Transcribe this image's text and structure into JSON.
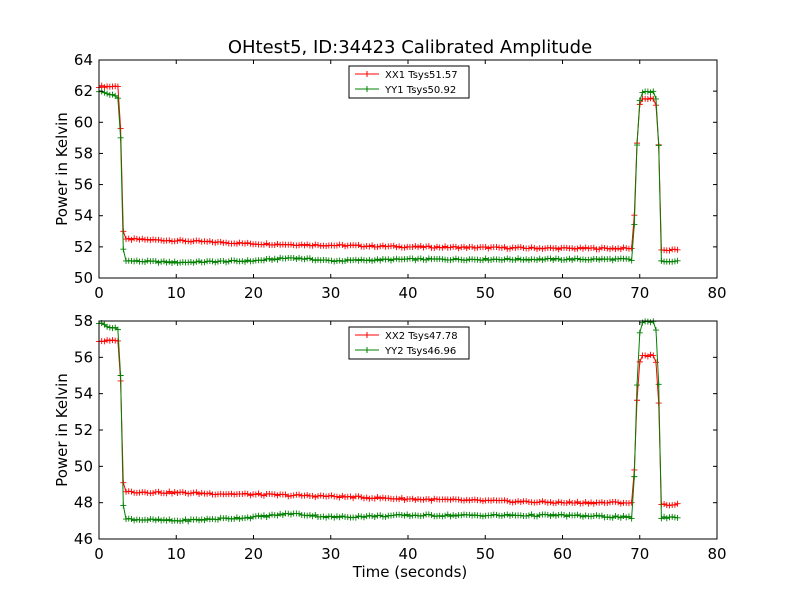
{
  "figure": {
    "title": "OHtest5, ID:34423 Calibrated Amplitude",
    "xlabel": "Time (seconds)"
  },
  "colors": {
    "xx": "#ff0000",
    "yy": "#008000"
  },
  "chart_data": [
    {
      "type": "line",
      "title": "OHtest5, ID:34423 Calibrated Amplitude",
      "xlabel": "",
      "ylabel": "Power in Kelvin",
      "xlim": [
        0,
        80
      ],
      "ylim": [
        50,
        64
      ],
      "xticks": [
        0,
        10,
        20,
        30,
        40,
        50,
        60,
        70,
        80
      ],
      "yticks": [
        50,
        52,
        54,
        56,
        58,
        60,
        62,
        64
      ],
      "grid": false,
      "legend_position": "top-center",
      "marker": "plus",
      "series": [
        {
          "name": "XX1 Tsys51.57",
          "color": "#ff0000",
          "x": [
            0.0,
            2.5,
            2.8,
            3.1,
            3.4,
            10.0,
            20.0,
            30.0,
            40.0,
            50.0,
            60.0,
            68.5,
            69.1,
            69.4,
            69.8,
            70.2,
            72.0,
            72.4,
            72.7,
            73.0,
            75.0
          ],
          "values": [
            62.3,
            62.3,
            59.6,
            53.1,
            52.5,
            52.4,
            52.2,
            52.1,
            52.0,
            51.95,
            51.9,
            51.9,
            51.9,
            55.1,
            60.8,
            61.5,
            61.5,
            59.9,
            51.8,
            51.8,
            51.8
          ]
        },
        {
          "name": "YY1 Tsys50.92",
          "color": "#008000",
          "x": [
            0.0,
            2.0,
            2.6,
            2.8,
            3.1,
            3.4,
            10.0,
            20.0,
            25.0,
            30.0,
            40.0,
            50.0,
            60.0,
            68.5,
            69.1,
            69.4,
            69.8,
            70.2,
            72.0,
            72.4,
            72.7,
            73.0,
            75.0
          ],
          "values": [
            62.0,
            61.7,
            61.5,
            59.0,
            52.0,
            51.1,
            51.0,
            51.1,
            51.3,
            51.1,
            51.2,
            51.2,
            51.2,
            51.2,
            51.1,
            54.6,
            60.9,
            61.9,
            62.0,
            60.0,
            51.1,
            51.1,
            51.1
          ]
        }
      ]
    },
    {
      "type": "line",
      "title": "",
      "xlabel": "Time (seconds)",
      "ylabel": "Power in Kelvin",
      "xlim": [
        0,
        80
      ],
      "ylim": [
        46,
        58
      ],
      "xticks": [
        0,
        10,
        20,
        30,
        40,
        50,
        60,
        70,
        80
      ],
      "yticks": [
        46,
        48,
        50,
        52,
        54,
        56,
        58
      ],
      "grid": false,
      "legend_position": "top-center",
      "marker": "plus",
      "series": [
        {
          "name": "XX2 Tsys47.78",
          "color": "#ff0000",
          "x": [
            0.0,
            2.5,
            2.8,
            3.1,
            3.4,
            10.0,
            20.0,
            30.0,
            40.0,
            50.0,
            60.0,
            68.5,
            69.1,
            69.4,
            69.8,
            70.2,
            72.0,
            72.4,
            72.7,
            73.0,
            75.0
          ],
          "values": [
            56.9,
            56.9,
            54.7,
            49.2,
            48.6,
            48.55,
            48.45,
            48.35,
            48.2,
            48.1,
            48.0,
            48.0,
            48.0,
            50.7,
            55.4,
            56.1,
            56.1,
            54.6,
            47.9,
            47.9,
            47.9
          ]
        },
        {
          "name": "YY2 Tsys46.96",
          "color": "#008000",
          "x": [
            0.0,
            2.0,
            2.6,
            2.8,
            3.1,
            3.4,
            10.0,
            20.0,
            25.0,
            30.0,
            40.0,
            50.0,
            60.0,
            68.5,
            69.1,
            69.4,
            69.8,
            70.2,
            72.0,
            72.4,
            72.7,
            73.0,
            75.0
          ],
          "values": [
            57.9,
            57.6,
            57.5,
            55.0,
            48.0,
            47.1,
            47.0,
            47.2,
            47.4,
            47.2,
            47.3,
            47.3,
            47.3,
            47.2,
            47.1,
            50.6,
            56.8,
            57.9,
            58.0,
            56.0,
            47.1,
            47.2,
            47.2
          ]
        }
      ]
    }
  ]
}
